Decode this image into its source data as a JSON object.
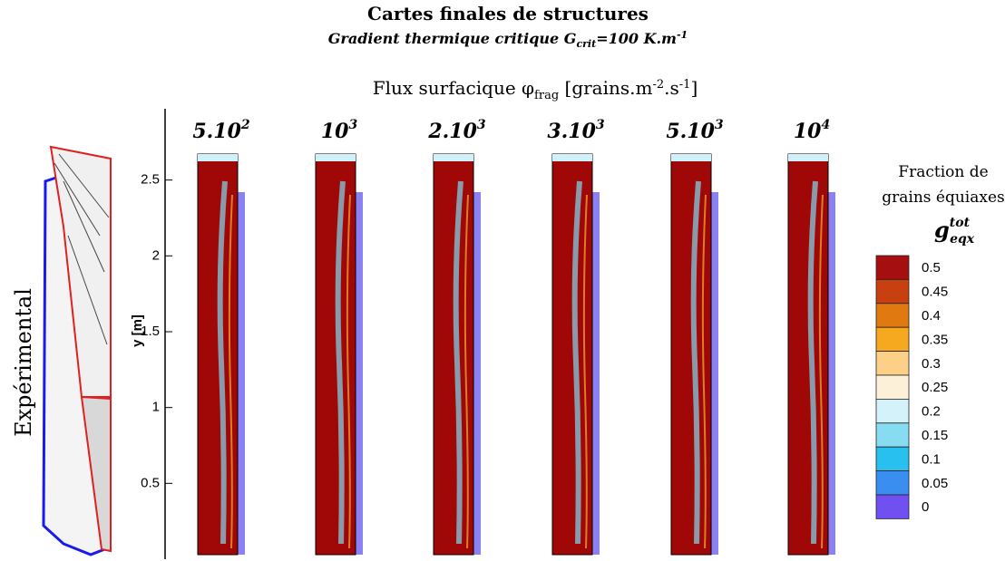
{
  "header": {
    "title": "Cartes finales de structures",
    "subtitle": {
      "text": "Gradient thermique critique ",
      "symbol": "G",
      "subscript": "crit",
      "value": "=100 K.m",
      "superscript": "-1"
    },
    "flux": {
      "text": "Flux surfacique φ",
      "subscript": "frag",
      "unit_a": " [grains.m",
      "sup_a": "-2",
      "unit_b": ".s",
      "sup_b": "-1",
      "unit_c": "]"
    }
  },
  "experimental_label": "Expérimental",
  "panels": [
    {
      "base": "5.10",
      "exp": "2"
    },
    {
      "base": "10",
      "exp": "3"
    },
    {
      "base": "2.10",
      "exp": "3"
    },
    {
      "base": "3.10",
      "exp": "3"
    },
    {
      "base": "5.10",
      "exp": "3"
    },
    {
      "base": "10",
      "exp": "4"
    }
  ],
  "y_axis": {
    "label": "y [m]",
    "ylim": [
      0,
      2.97
    ],
    "ticks": [
      0.5,
      1,
      1.5,
      2,
      2.5
    ]
  },
  "colorbar": {
    "title_1": "Fraction de",
    "title_2": "grains équiaxes",
    "symbol": "g",
    "sup": "tot",
    "sub": "eqx",
    "levels": [
      0.5,
      0.45,
      0.4,
      0.35,
      0.3,
      0.25,
      0.2,
      0.15,
      0.1,
      0.05,
      0
    ],
    "colors": [
      "#a50f0f",
      "#c8400f",
      "#e07a10",
      "#f6a81e",
      "#fdd088",
      "#fdf0d8",
      "#d4f2fa",
      "#88dcf2",
      "#28c0ee",
      "#3a8ef0",
      "#7050f0"
    ]
  }
}
